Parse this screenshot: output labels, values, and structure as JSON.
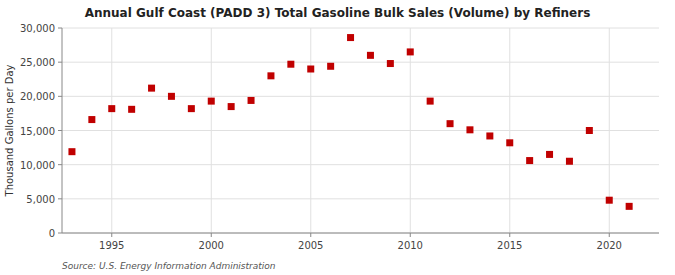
{
  "chart_data": {
    "type": "scatter",
    "title": "Annual Gulf Coast (PADD 3) Total Gasoline Bulk Sales (Volume) by Refiners",
    "y_label": "Thousand Gallons per Day",
    "annotations": [
      "Source: U.S. Energy Information Administration"
    ],
    "color": "#c00000",
    "marker": "square",
    "grid": true,
    "xlim": [
      1992.5,
      2022.5
    ],
    "ylim": [
      0,
      30000
    ],
    "xticks": [
      1995,
      2000,
      2005,
      2010,
      2015,
      2020
    ],
    "yticks": [
      0,
      {
        "value": 5000,
        "label": "5,000"
      },
      {
        "value": 10000,
        "label": "10,000"
      },
      {
        "value": 15000,
        "label": "15,000"
      },
      {
        "value": 20000,
        "label": "20,000"
      },
      {
        "value": 25000,
        "label": "25,000"
      },
      {
        "value": 30000,
        "label": "30,000"
      }
    ],
    "x": [
      1993,
      1994,
      1995,
      1996,
      1997,
      1998,
      1999,
      2000,
      2001,
      2002,
      2003,
      2004,
      2005,
      2006,
      2007,
      2008,
      2009,
      2010,
      2011,
      2012,
      2013,
      2014,
      2015,
      2016,
      2017,
      2018,
      2019,
      2020,
      2021
    ],
    "values": [
      11900,
      16600,
      18200,
      18100,
      21200,
      20000,
      18200,
      19300,
      18500,
      19400,
      23000,
      24700,
      24000,
      24400,
      28600,
      26000,
      24800,
      26500,
      19300,
      16000,
      15100,
      14200,
      13200,
      10600,
      11500,
      10500,
      15000,
      4800,
      3900
    ]
  }
}
